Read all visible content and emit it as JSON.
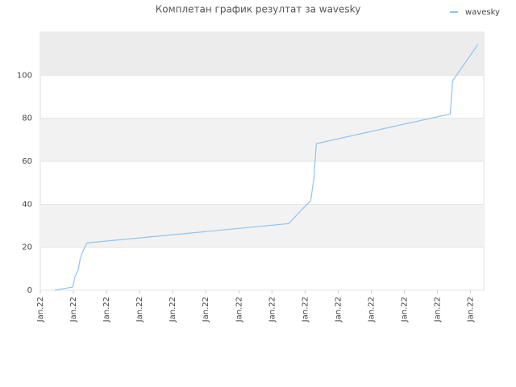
{
  "chart_data": {
    "type": "line",
    "title": "Комплетан график резултат за wavesky",
    "x": [
      0.44,
      0.98,
      1.05,
      1.15,
      1.2,
      1.27,
      1.41,
      7.51,
      7.9,
      8.17,
      8.27,
      8.34,
      12.39,
      12.46,
      13.22
    ],
    "series": [
      {
        "name": "wavesky",
        "color": "#90c4ed",
        "values": [
          0,
          1.5,
          6.4,
          9.7,
          14.2,
          17.6,
          22,
          31,
          37.5,
          41.6,
          52.4,
          68.2,
          82,
          97.4,
          114.2
        ]
      }
    ],
    "xlim": [
      0,
      13.4
    ],
    "xticks": [
      {
        "value": 0,
        "label": "Jan.22"
      },
      {
        "value": 1,
        "label": "Jan.22"
      },
      {
        "value": 2,
        "label": "Jan.22"
      },
      {
        "value": 3,
        "label": "Jan.22"
      },
      {
        "value": 4,
        "label": "Jan.22"
      },
      {
        "value": 5,
        "label": "Jan.22"
      },
      {
        "value": 6,
        "label": "Jan.22"
      },
      {
        "value": 7,
        "label": "Jan.22"
      },
      {
        "value": 8,
        "label": "Jan.22"
      },
      {
        "value": 9,
        "label": "Jan.22"
      },
      {
        "value": 10,
        "label": "Jan.22"
      },
      {
        "value": 11,
        "label": "Jan.22"
      },
      {
        "value": 12,
        "label": "Jan.22"
      },
      {
        "value": 13,
        "label": "Jan.22"
      }
    ],
    "ylim": [
      0,
      120
    ],
    "yticks": [
      0,
      20,
      40,
      60,
      80,
      100
    ],
    "grid": true,
    "legend": "top-right"
  }
}
